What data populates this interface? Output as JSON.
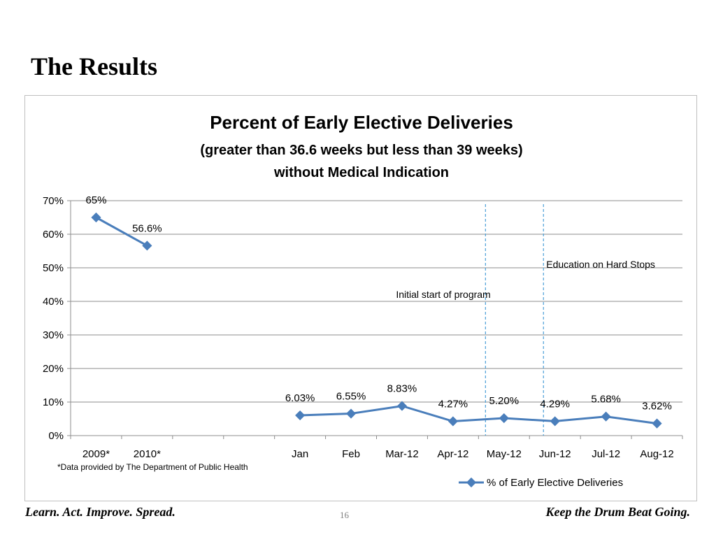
{
  "slide": {
    "title": "The Results",
    "footer_left": "Learn. Act. Improve. Spread.",
    "footer_right": "Keep the Drum Beat Going.",
    "page_number": "16"
  },
  "chart_data": {
    "type": "line",
    "title": "Percent of Early Elective Deliveries",
    "subtitle_1": "(greater than 36.6 weeks but less than 39 weeks)",
    "subtitle_2": "without Medical Indication",
    "xlabel": "",
    "ylabel": "",
    "ylim": [
      0,
      0.7
    ],
    "yticks": [
      "0%",
      "10%",
      "20%",
      "30%",
      "40%",
      "50%",
      "60%",
      "70%"
    ],
    "grid": true,
    "categories": [
      "2009*",
      "2010*",
      "",
      "",
      "Jan",
      "Feb",
      "Mar-12",
      "Apr-12",
      "May-12",
      "Jun-12",
      "Jul-12",
      "Aug-12"
    ],
    "series": [
      {
        "name": "% of Early Elective Deliveries",
        "color": "#4a7ebb",
        "values": [
          0.65,
          0.566,
          null,
          null,
          0.0603,
          0.0655,
          0.0883,
          0.0427,
          0.052,
          0.0429,
          0.0568,
          0.0362
        ],
        "labels": [
          "65%",
          "56.6%",
          "",
          "",
          "6.03%",
          "6.55%",
          "8.83%",
          "4.27%",
          "5.20%",
          "4.29%",
          "5.68%",
          "3.62%"
        ]
      }
    ],
    "annotations": [
      {
        "text": "Initial start of program",
        "at_category_between": [
          "Apr-12",
          "May-12"
        ]
      },
      {
        "text": "Education on Hard Stops",
        "at_category_between": [
          "May-12",
          "Jun-12"
        ]
      }
    ],
    "footnote": "*Data provided by The Department of Public Health",
    "legend_position": "bottom-right"
  }
}
